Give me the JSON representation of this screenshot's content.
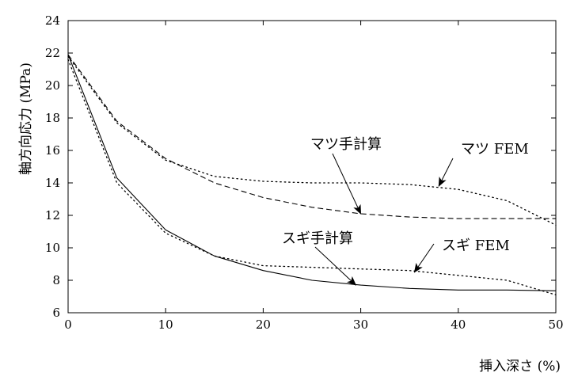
{
  "chart_data": {
    "type": "line",
    "title": "",
    "xlabel": "挿入深さ (%)",
    "ylabel": "軸方向応力 (MPa)",
    "xlim": [
      0,
      50
    ],
    "ylim": [
      6,
      24
    ],
    "xticks": [
      0,
      10,
      20,
      30,
      40,
      50
    ],
    "yticks": [
      6,
      8,
      10,
      12,
      14,
      16,
      18,
      20,
      22,
      24
    ],
    "grid": false,
    "series": [
      {
        "name": "マツ手計算",
        "style": "dashed",
        "x": [
          0,
          5,
          10,
          15,
          20,
          25,
          30,
          35,
          40,
          45,
          50
        ],
        "y": [
          21.9,
          17.8,
          15.5,
          14.0,
          13.1,
          12.5,
          12.1,
          11.9,
          11.8,
          11.8,
          11.8
        ]
      },
      {
        "name": "マツ FEM",
        "style": "dotted",
        "x": [
          0,
          5,
          10,
          15,
          20,
          25,
          30,
          35,
          40,
          45,
          50
        ],
        "y": [
          21.8,
          17.7,
          15.4,
          14.4,
          14.1,
          14.0,
          14.0,
          13.9,
          13.6,
          12.9,
          11.4
        ]
      },
      {
        "name": "スギ手計算",
        "style": "solid",
        "x": [
          0,
          5,
          10,
          15,
          20,
          25,
          30,
          35,
          40,
          45,
          50
        ],
        "y": [
          21.9,
          14.3,
          11.1,
          9.5,
          8.6,
          8.0,
          7.7,
          7.5,
          7.4,
          7.4,
          7.35
        ]
      },
      {
        "name": "スギ FEM",
        "style": "dotted",
        "x": [
          0,
          5,
          10,
          15,
          20,
          25,
          30,
          35,
          40,
          45,
          50
        ],
        "y": [
          21.6,
          14.0,
          10.9,
          9.5,
          8.9,
          8.8,
          8.7,
          8.6,
          8.3,
          8.0,
          7.1
        ]
      }
    ],
    "annotations": [
      {
        "label": "マツ手計算",
        "target": [
          30,
          12.1
        ]
      },
      {
        "label": "マツ FEM",
        "target": [
          38,
          13.8
        ]
      },
      {
        "label": "スギ手計算",
        "target": [
          29.5,
          7.7
        ]
      },
      {
        "label": "スギ FEM",
        "target": [
          35.5,
          8.5
        ]
      }
    ]
  }
}
